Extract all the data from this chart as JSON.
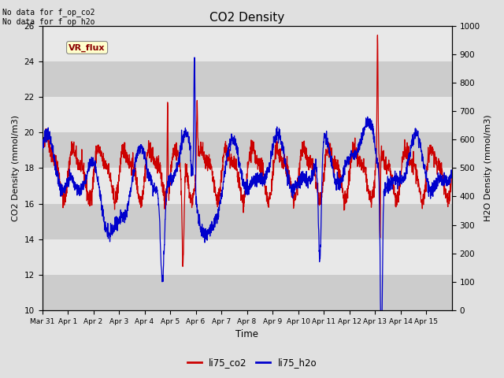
{
  "title": "CO2 Density",
  "xlabel": "Time",
  "ylabel_left": "CO2 Density (mmol/m3)",
  "ylabel_right": "H2O Density (mmol/m3)",
  "ylim_left": [
    10,
    26
  ],
  "ylim_right": [
    0,
    1000
  ],
  "yticks_left": [
    10,
    12,
    14,
    16,
    18,
    20,
    22,
    24,
    26
  ],
  "yticks_right": [
    0,
    100,
    200,
    300,
    400,
    500,
    600,
    700,
    800,
    900,
    1000
  ],
  "annotation_text": "No data for f_op_co2\nNo data for f_op_h2o",
  "legend_label_text": "VR_flux",
  "bg_color": "#e0e0e0",
  "band_color_dark": "#cccccc",
  "band_color_light": "#e8e8e8",
  "color_co2": "#cc0000",
  "color_h2o": "#0000cc",
  "legend_entries": [
    "li75_co2",
    "li75_h2o"
  ],
  "tick_labels": [
    "Mar 31",
    "Apr 1",
    "Apr 2",
    "Apr 3",
    "Apr 4",
    "Apr 5",
    "Apr 6",
    "Apr 7",
    "Apr 8",
    "Apr 9",
    "Apr 10",
    "Apr 11",
    "Apr 12",
    "Apr 13",
    "Apr 14",
    "Apr 15"
  ],
  "n_points": 2160,
  "seed": 42
}
